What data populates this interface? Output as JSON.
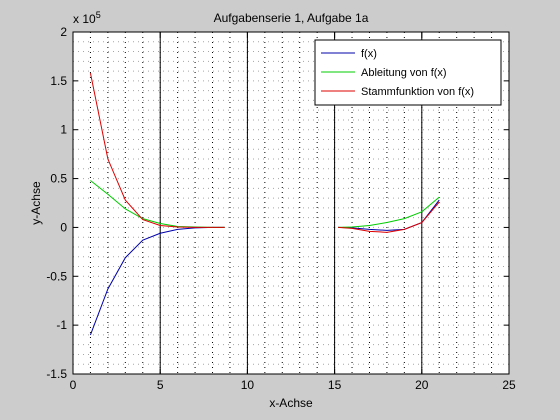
{
  "chart_data": {
    "type": "line",
    "title": "Aufgabenserie 1, Aufgabe 1a",
    "xlabel": "x-Achse",
    "ylabel": "y-Achse",
    "y_exponent_label": "x 10",
    "y_exponent_power": "5",
    "xlim": [
      0,
      25
    ],
    "ylim": [
      -1.5,
      2
    ],
    "xticks": [
      0,
      5,
      10,
      15,
      20,
      25
    ],
    "xtick_labels": [
      "0",
      "5",
      "10",
      "15",
      "20",
      "25"
    ],
    "yticks": [
      -1.5,
      -1,
      -0.5,
      0,
      0.5,
      1,
      1.5,
      2
    ],
    "ytick_labels": [
      "-1.5",
      "-1",
      "-0.5",
      "0",
      "0.5",
      "1",
      "1.5",
      "2"
    ],
    "grid": "dotted",
    "vertical_lines_x": [
      5,
      10,
      15,
      20
    ],
    "legend_position": "top-right",
    "series": [
      {
        "name": "f(x)",
        "color": "#0000aa",
        "x": [
          1,
          2,
          3,
          4,
          5,
          6,
          7,
          8,
          8.7,
          15.2,
          16,
          17,
          18,
          19,
          20,
          21
        ],
        "y": [
          -1.1,
          -0.63,
          -0.31,
          -0.13,
          -0.06,
          -0.02,
          -0.005,
          0,
          0,
          0,
          -0.005,
          -0.02,
          -0.03,
          -0.02,
          0.05,
          0.28
        ]
      },
      {
        "name": "Ableitung von f(x)",
        "color": "#00cc00",
        "x": [
          1,
          2,
          3,
          4,
          5,
          6,
          7,
          8,
          8.7,
          15.2,
          16,
          17,
          18,
          19,
          20,
          21
        ],
        "y": [
          0.48,
          0.34,
          0.19,
          0.09,
          0.04,
          0.01,
          0.005,
          0,
          0,
          0,
          0.005,
          0.02,
          0.05,
          0.09,
          0.16,
          0.31
        ]
      },
      {
        "name": "Stammfunktion von f(x)",
        "color": "#dd0000",
        "x": [
          1,
          2,
          3,
          4,
          5,
          6,
          7,
          8,
          8.7,
          15.2,
          16,
          17,
          18,
          19,
          20,
          21
        ],
        "y": [
          1.58,
          0.7,
          0.28,
          0.08,
          0.02,
          0.005,
          0,
          0,
          0,
          0,
          -0.01,
          -0.04,
          -0.05,
          -0.02,
          0.05,
          0.26
        ]
      }
    ]
  }
}
